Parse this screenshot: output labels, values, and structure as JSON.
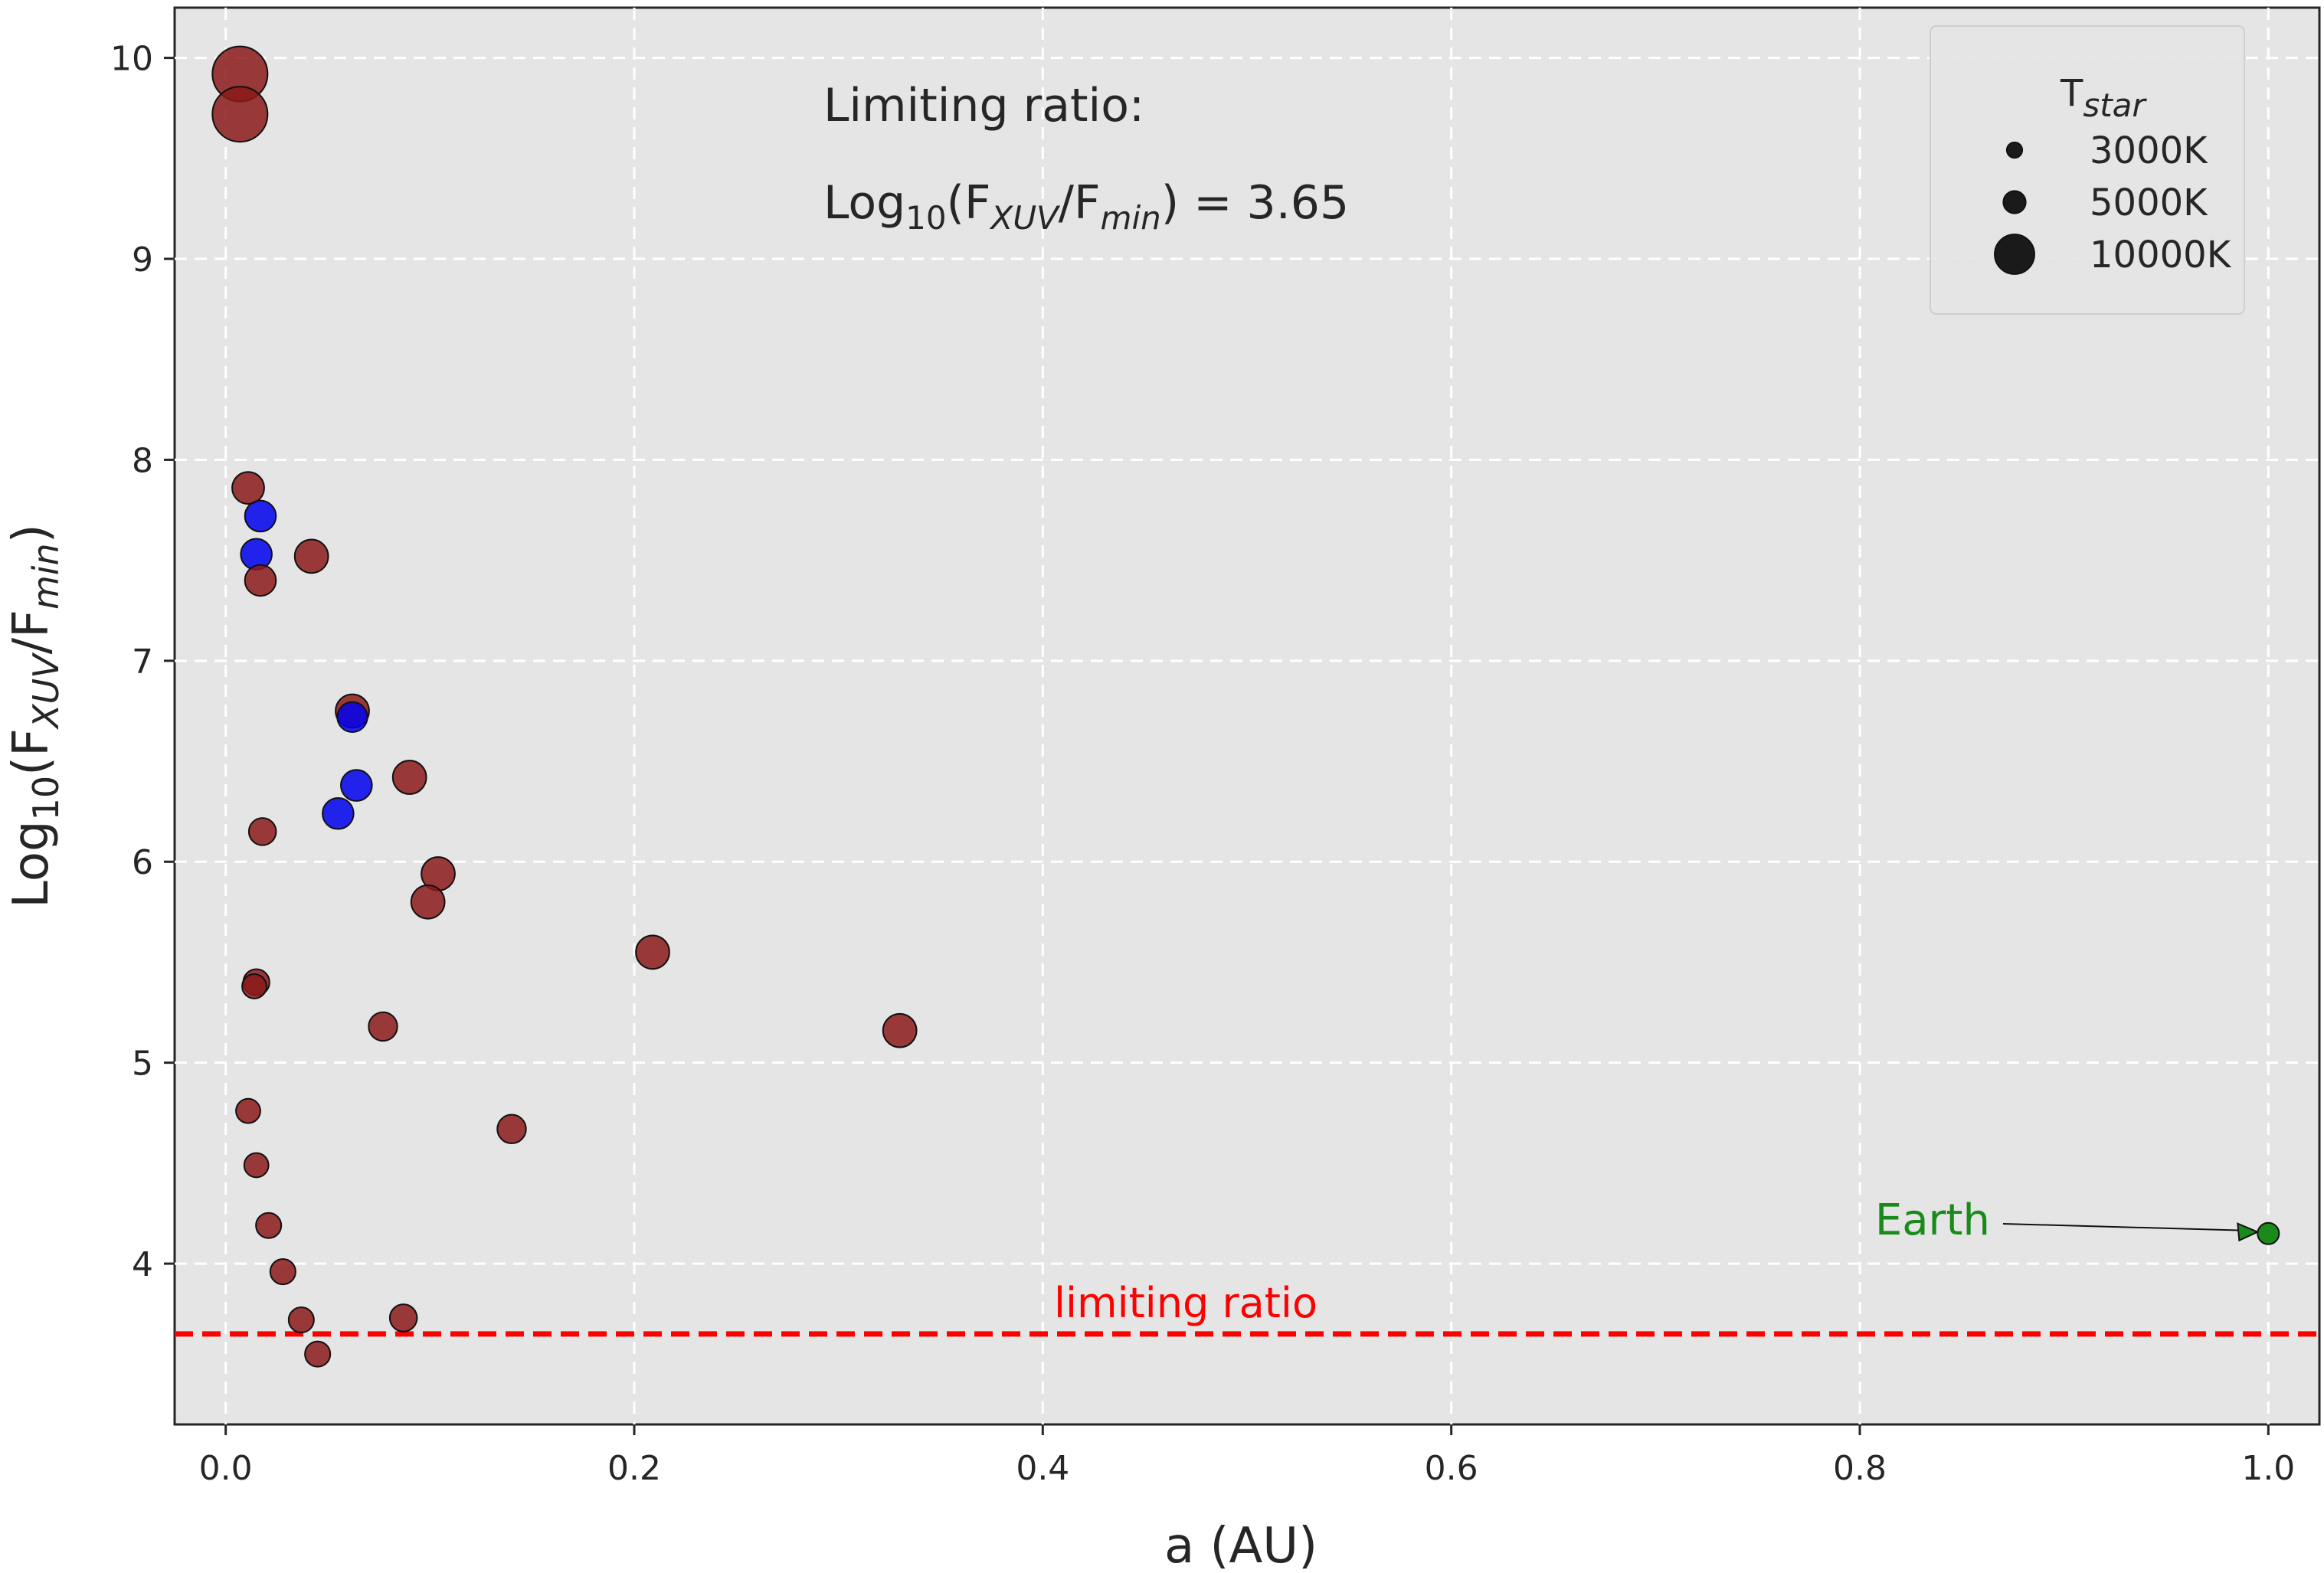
{
  "chart_data": {
    "type": "scatter",
    "xlabel": "a (AU)",
    "ylabel": {
      "prefix": "Log",
      "sub10": "10",
      "open": "(F",
      "sub1": "XUV",
      "mid": "/F",
      "sub2": "min",
      "close": ")"
    },
    "xlim": [
      -0.025,
      1.025
    ],
    "ylim": [
      3.2,
      10.25
    ],
    "x_ticks": [
      0.0,
      0.2,
      0.4,
      0.6,
      0.8,
      1.0
    ],
    "x_tick_labels": [
      "0.0",
      "0.2",
      "0.4",
      "0.6",
      "0.8",
      "1.0"
    ],
    "y_ticks": [
      4,
      5,
      6,
      7,
      8,
      9,
      10
    ],
    "y_tick_labels": [
      "4",
      "5",
      "6",
      "7",
      "8",
      "9",
      "10"
    ],
    "grid": true,
    "colors": {
      "background": "#e5e5e5",
      "grid": "#ffffff",
      "planet_red": "#8b1a1a",
      "planet_blue": "#0000ee",
      "earth": "#1a8a1a",
      "limit_line": "#ff0000",
      "text": "#262626"
    },
    "limiting_ratio": 3.65,
    "limit_line_label": "limiting ratio",
    "annotation": {
      "line1": "Limiting ratio:",
      "prefix": "Log",
      "sub10": "10",
      "open": "(F",
      "sub1": "XUV",
      "mid": "/F",
      "sub2": "min",
      "close": ") = 3.65"
    },
    "earth": {
      "label": "Earth",
      "x": 1.0,
      "y": 4.15
    },
    "legend": {
      "title_main": "T",
      "title_sub": "star",
      "placement": "top-right",
      "entries": [
        {
          "label": "3000K",
          "tstar": 3000
        },
        {
          "label": "5000K",
          "tstar": 5000
        },
        {
          "label": "10000K",
          "tstar": 10000
        }
      ]
    },
    "points": [
      {
        "x": 0.007,
        "y": 9.92,
        "tstar": 10000,
        "color": "red"
      },
      {
        "x": 0.007,
        "y": 9.72,
        "tstar": 10000,
        "color": "red"
      },
      {
        "x": 0.011,
        "y": 7.86,
        "tstar": 5200,
        "color": "red"
      },
      {
        "x": 0.017,
        "y": 7.72,
        "tstar": 5000,
        "color": "blue"
      },
      {
        "x": 0.015,
        "y": 7.53,
        "tstar": 5000,
        "color": "blue"
      },
      {
        "x": 0.017,
        "y": 7.4,
        "tstar": 5000,
        "color": "red"
      },
      {
        "x": 0.042,
        "y": 7.52,
        "tstar": 5500,
        "color": "red"
      },
      {
        "x": 0.062,
        "y": 6.75,
        "tstar": 5500,
        "color": "red"
      },
      {
        "x": 0.062,
        "y": 6.72,
        "tstar": 4800,
        "color": "blue"
      },
      {
        "x": 0.064,
        "y": 6.38,
        "tstar": 5000,
        "color": "blue"
      },
      {
        "x": 0.055,
        "y": 6.24,
        "tstar": 5000,
        "color": "blue"
      },
      {
        "x": 0.09,
        "y": 6.42,
        "tstar": 5500,
        "color": "red"
      },
      {
        "x": 0.018,
        "y": 6.15,
        "tstar": 4200,
        "color": "red"
      },
      {
        "x": 0.104,
        "y": 5.94,
        "tstar": 5500,
        "color": "red"
      },
      {
        "x": 0.099,
        "y": 5.8,
        "tstar": 5500,
        "color": "red"
      },
      {
        "x": 0.209,
        "y": 5.55,
        "tstar": 5500,
        "color": "red"
      },
      {
        "x": 0.33,
        "y": 5.16,
        "tstar": 5500,
        "color": "red"
      },
      {
        "x": 0.015,
        "y": 5.4,
        "tstar": 4000,
        "color": "red"
      },
      {
        "x": 0.014,
        "y": 5.38,
        "tstar": 3600,
        "color": "red"
      },
      {
        "x": 0.077,
        "y": 5.18,
        "tstar": 4500,
        "color": "red"
      },
      {
        "x": 0.14,
        "y": 4.67,
        "tstar": 4500,
        "color": "red"
      },
      {
        "x": 0.011,
        "y": 4.76,
        "tstar": 3600,
        "color": "red"
      },
      {
        "x": 0.015,
        "y": 4.49,
        "tstar": 3600,
        "color": "red"
      },
      {
        "x": 0.021,
        "y": 4.19,
        "tstar": 3800,
        "color": "red"
      },
      {
        "x": 0.028,
        "y": 3.96,
        "tstar": 3800,
        "color": "red"
      },
      {
        "x": 0.037,
        "y": 3.72,
        "tstar": 3800,
        "color": "red"
      },
      {
        "x": 0.087,
        "y": 3.73,
        "tstar": 4200,
        "color": "red"
      },
      {
        "x": 0.045,
        "y": 3.55,
        "tstar": 3800,
        "color": "red"
      }
    ]
  }
}
